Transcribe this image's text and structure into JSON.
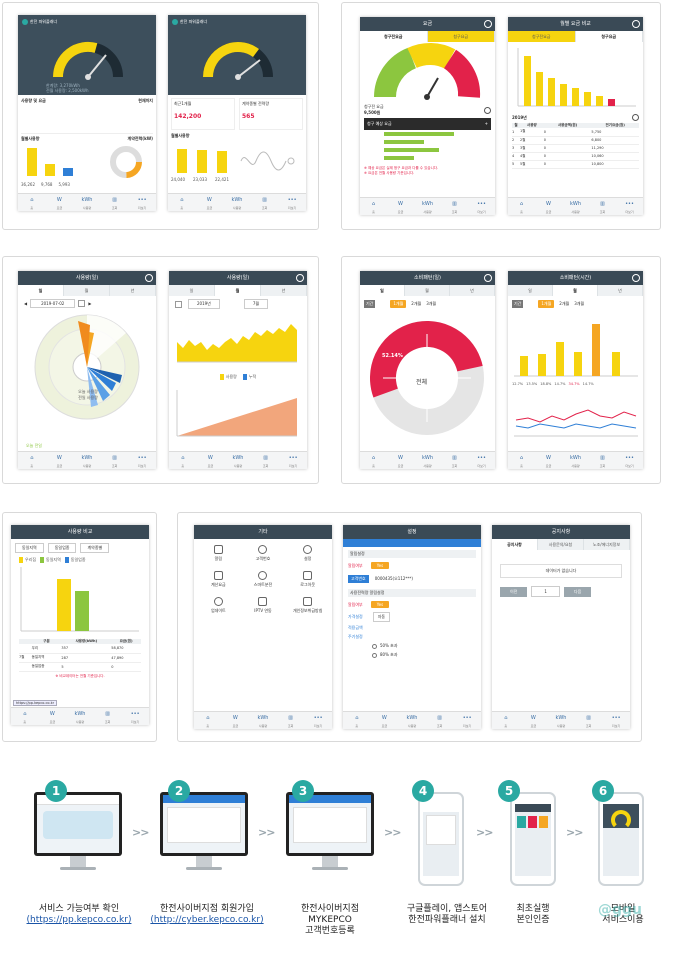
{
  "panel1": {
    "screen_a": {
      "app_title": "한전 파워플래너",
      "usage_header": "사용량 및 요금",
      "forecast_header": "현재까지",
      "chart_header": "월별사용량",
      "donut_header": "계약전력(kW)",
      "bar_values": [
        "36,262",
        "9,768",
        "5,993"
      ],
      "nav": [
        "홈",
        "요금",
        "사용량",
        "조회",
        "더보기"
      ]
    },
    "screen_b": {
      "app_title": "한전 파워플래너",
      "box1_label": "최근1개월",
      "box1_value": "142,200",
      "box2_label": "계약종별 전력량",
      "box2_value": "565",
      "chart_header": "월별사용량",
      "bar_values": [
        "24,040",
        "23,033",
        "22,421"
      ],
      "nav": [
        "홈",
        "요금",
        "사용량",
        "조회",
        "더보기"
      ]
    }
  },
  "panel2": {
    "screen_a": {
      "title": "요금",
      "tabs": [
        "청구전요금",
        "청구요금"
      ],
      "bill_label": "청구전 요금",
      "bill_value": "9,500원",
      "dark_row": "청구 예상 요금",
      "notes": [
        "※ 예상 요금은 실제 청구 요금과 다를 수 있습니다.",
        "※ 요금은 전월 사용량 기준입니다."
      ],
      "nav": [
        "홈",
        "요금",
        "사용량",
        "조회",
        "더보기"
      ]
    },
    "screen_b": {
      "title": "월별 요금 비교",
      "tabs": [
        "청구전요금",
        "청구요금"
      ],
      "table_caption": "2019년",
      "table_headers": [
        "월",
        "사용량",
        "사용금액(원)",
        "전기요금(원)"
      ],
      "table_rows": [
        [
          "1",
          "1월",
          "0",
          "5,750"
        ],
        [
          "2",
          "2월",
          "0",
          "6,800"
        ],
        [
          "3",
          "3월",
          "0",
          "11,290"
        ],
        [
          "4",
          "4월",
          "0",
          "10,060"
        ],
        [
          "5",
          "5월",
          "0",
          "10,800"
        ]
      ],
      "nav": [
        "홈",
        "요금",
        "사용량",
        "조회",
        "더보기"
      ]
    }
  },
  "panel3": {
    "screen_a": {
      "title": "사용량(일)",
      "tabs": [
        "일",
        "월",
        "년"
      ],
      "date": "2019-07-02",
      "center_lines": [
        "오늘 사용량",
        "전일 사용량"
      ],
      "legend": "오늘 전일",
      "nav": [
        "홈",
        "요금",
        "사용량",
        "조회",
        "더보기"
      ]
    },
    "screen_b": {
      "title": "사용량(일)",
      "tabs": [
        "일",
        "월",
        "년"
      ],
      "year": "2019년",
      "month": "7월",
      "legend": [
        "사용량",
        "누적"
      ],
      "nav": [
        "홈",
        "요금",
        "사용량",
        "조회",
        "더보기"
      ]
    }
  },
  "panel4": {
    "screen_a": {
      "title": "소비패턴(일)",
      "tabs": [
        "일",
        "월",
        "년"
      ],
      "sub_label": "기간",
      "segment_buttons": [
        "1개월",
        "2개월",
        "3개월"
      ],
      "donut_center": "전체",
      "donut_percent": "52.14%",
      "nav": [
        "홈",
        "요금",
        "사용량",
        "조회",
        "더보기"
      ]
    },
    "screen_b": {
      "title": "소비패턴(시간)",
      "tabs": [
        "일",
        "월",
        "년"
      ],
      "sub_label": "기간",
      "segment_buttons": [
        "1개월",
        "2개월",
        "3개월"
      ],
      "bar_labels": [
        "12.7%",
        "13.5%",
        "18.8%",
        "14.7%",
        "34.7%",
        "14.7%"
      ],
      "nav": [
        "홈",
        "요금",
        "사용량",
        "조회",
        "더보기"
      ]
    }
  },
  "panel5": {
    "title": "사용량 비교",
    "selects": [
      "동일지역",
      "동일업종",
      "계약종별"
    ],
    "legend": [
      "우리집",
      "동일지역",
      "동일업종"
    ],
    "table_headers": [
      "구분",
      "사용량(kWh)",
      "요금(원)"
    ],
    "table_rows": [
      [
        "",
        "우리",
        "357",
        "58,870"
      ],
      [
        "7월",
        "동일지역",
        "287",
        "47,890"
      ],
      [
        "",
        "동일업종",
        "5",
        "0"
      ]
    ],
    "note": "※ 비교데이터는 전월 기준입니다.",
    "url_tip": "https://pp.kepco.co.kr",
    "nav": [
      "홈",
      "요금",
      "사용량",
      "조회",
      "더보기"
    ]
  },
  "panel6": {
    "screen_a": {
      "title": "기타",
      "items": [
        "알림",
        "고객번호",
        "설정",
        "계산요금",
        "스마트분전",
        "로그아웃",
        "업데이트",
        "IPTV 연동",
        "개인정보취급방침"
      ],
      "nav": [
        "홈",
        "요금",
        "사용량",
        "조회",
        "더보기"
      ]
    },
    "screen_b": {
      "title": "설정",
      "section1": "알림설정",
      "toggle1_label": "알림여부",
      "toggle_on": "Yes",
      "customer_button": "고객번호",
      "customer_value": "0000435(오112***)",
      "section2": "사용전력량 알림설정",
      "toggle2_label": "알림여부",
      "rows": [
        "가격설정",
        "적용금액",
        "주기설정"
      ],
      "rows_value": "자동",
      "options": [
        "50% 초과",
        "80% 초과"
      ],
      "nav": [
        "홈",
        "요금",
        "사용량",
        "조회",
        "더보기"
      ]
    },
    "screen_c": {
      "title": "공지사항",
      "tabs": [
        "공지사항",
        "사용문의/요청",
        "노조/에너지정보"
      ],
      "empty": "데이터가 없습니다",
      "pager_prev": "이전",
      "pager_page": "1",
      "pager_next": "다음",
      "nav": [
        "홈",
        "요금",
        "사용량",
        "조회",
        "더보기"
      ]
    }
  },
  "steps": [
    {
      "num": "1",
      "label": "서비스 가능여부 확인",
      "url": "(https://pp.kepco.co.kr)"
    },
    {
      "num": "2",
      "label": "한전사이버지점 회원가입",
      "url": "(http://cyber.kepco.co.kr)"
    },
    {
      "num": "3",
      "label1": "한전사이버지점",
      "label2": "MYKEPCO",
      "label3": "고객번호등록"
    },
    {
      "num": "4",
      "label1": "구글플레이, 앱스토어",
      "label2": "한전파워플래너 설치"
    },
    {
      "num": "5",
      "label1": "최초실행",
      "label2": "본인인증"
    },
    {
      "num": "6",
      "label1": "모바일",
      "label2": "서비스이용"
    }
  ],
  "watermark": "@ggu",
  "colors": {
    "dark": "#3a4a56",
    "orange": "#f5a623",
    "yellow": "#f6d40f",
    "red": "#e2224a",
    "blue": "#2f7fd6",
    "teal": "#2aa9a2",
    "green": "#8cc63f"
  }
}
